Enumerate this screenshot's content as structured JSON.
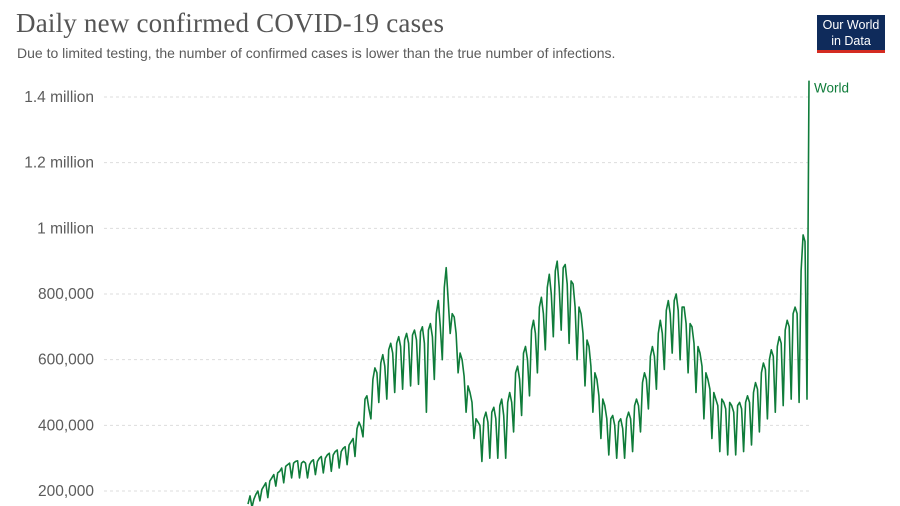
{
  "header": {
    "title": "Daily new confirmed COVID-19 cases",
    "subtitle": "Due to limited testing, the number of confirmed cases is lower than the true number of infections."
  },
  "logo": {
    "line1": "Our World",
    "line2": "in Data",
    "background": "#0f2b5b",
    "accent": "#d42b21"
  },
  "chart_data": {
    "type": "line",
    "title": "Daily new confirmed COVID-19 cases",
    "xlabel": "",
    "ylabel": "",
    "ylim": [
      150000,
      1450000
    ],
    "yticks": [
      {
        "value": 200000,
        "label": "200,000"
      },
      {
        "value": 400000,
        "label": "400,000"
      },
      {
        "value": 600000,
        "label": "600,000"
      },
      {
        "value": 800000,
        "label": "800,000"
      },
      {
        "value": 1000000,
        "label": "1 million"
      },
      {
        "value": 1200000,
        "label": "1.2 million"
      },
      {
        "value": 1400000,
        "label": "1.4 million"
      }
    ],
    "grid": true,
    "series": [
      {
        "name": "World",
        "color": "#0f7c3a",
        "values": [
          160000,
          185000,
          150000,
          175000,
          190000,
          200000,
          170000,
          205000,
          215000,
          225000,
          180000,
          230000,
          240000,
          250000,
          215000,
          255000,
          260000,
          270000,
          225000,
          275000,
          280000,
          285000,
          240000,
          285000,
          290000,
          292000,
          240000,
          285000,
          290000,
          285000,
          240000,
          280000,
          290000,
          295000,
          250000,
          290000,
          300000,
          305000,
          255000,
          300000,
          310000,
          315000,
          260000,
          310000,
          320000,
          325000,
          270000,
          320000,
          330000,
          335000,
          280000,
          340000,
          350000,
          360000,
          305000,
          390000,
          410000,
          395000,
          365000,
          480000,
          490000,
          450000,
          420000,
          540000,
          575000,
          560000,
          470000,
          590000,
          615000,
          580000,
          480000,
          630000,
          650000,
          620000,
          500000,
          650000,
          670000,
          640000,
          510000,
          660000,
          680000,
          650000,
          520000,
          675000,
          690000,
          660000,
          525000,
          685000,
          700000,
          650000,
          440000,
          690000,
          710000,
          670000,
          540000,
          740000,
          780000,
          700000,
          600000,
          820000,
          880000,
          780000,
          680000,
          740000,
          730000,
          680000,
          560000,
          620000,
          600000,
          550000,
          440000,
          520000,
          500000,
          470000,
          360000,
          420000,
          410000,
          400000,
          290000,
          420000,
          440000,
          410000,
          300000,
          440000,
          455000,
          420000,
          300000,
          460000,
          480000,
          430000,
          300000,
          470000,
          500000,
          470000,
          380000,
          560000,
          580000,
          540000,
          430000,
          620000,
          640000,
          600000,
          490000,
          690000,
          720000,
          680000,
          560000,
          760000,
          790000,
          740000,
          630000,
          820000,
          860000,
          800000,
          670000,
          870000,
          900000,
          820000,
          690000,
          880000,
          890000,
          830000,
          650000,
          840000,
          830000,
          760000,
          600000,
          760000,
          740000,
          680000,
          520000,
          660000,
          640000,
          580000,
          440000,
          560000,
          540000,
          490000,
          360000,
          480000,
          460000,
          420000,
          310000,
          420000,
          430000,
          400000,
          300000,
          410000,
          420000,
          390000,
          300000,
          420000,
          440000,
          420000,
          320000,
          460000,
          480000,
          460000,
          380000,
          530000,
          560000,
          540000,
          450000,
          610000,
          640000,
          610000,
          510000,
          680000,
          720000,
          680000,
          570000,
          750000,
          780000,
          740000,
          620000,
          780000,
          800000,
          750000,
          600000,
          760000,
          760000,
          710000,
          560000,
          710000,
          700000,
          650000,
          500000,
          640000,
          620000,
          580000,
          420000,
          560000,
          540000,
          510000,
          360000,
          500000,
          480000,
          460000,
          320000,
          480000,
          470000,
          450000,
          310000,
          470000,
          460000,
          440000,
          310000,
          460000,
          470000,
          450000,
          320000,
          470000,
          490000,
          470000,
          340000,
          500000,
          530000,
          510000,
          380000,
          560000,
          590000,
          570000,
          420000,
          600000,
          630000,
          610000,
          440000,
          640000,
          670000,
          650000,
          460000,
          690000,
          720000,
          700000,
          480000,
          740000,
          760000,
          740000,
          470000,
          870000,
          980000,
          960000,
          480000,
          1450000
        ]
      }
    ]
  }
}
